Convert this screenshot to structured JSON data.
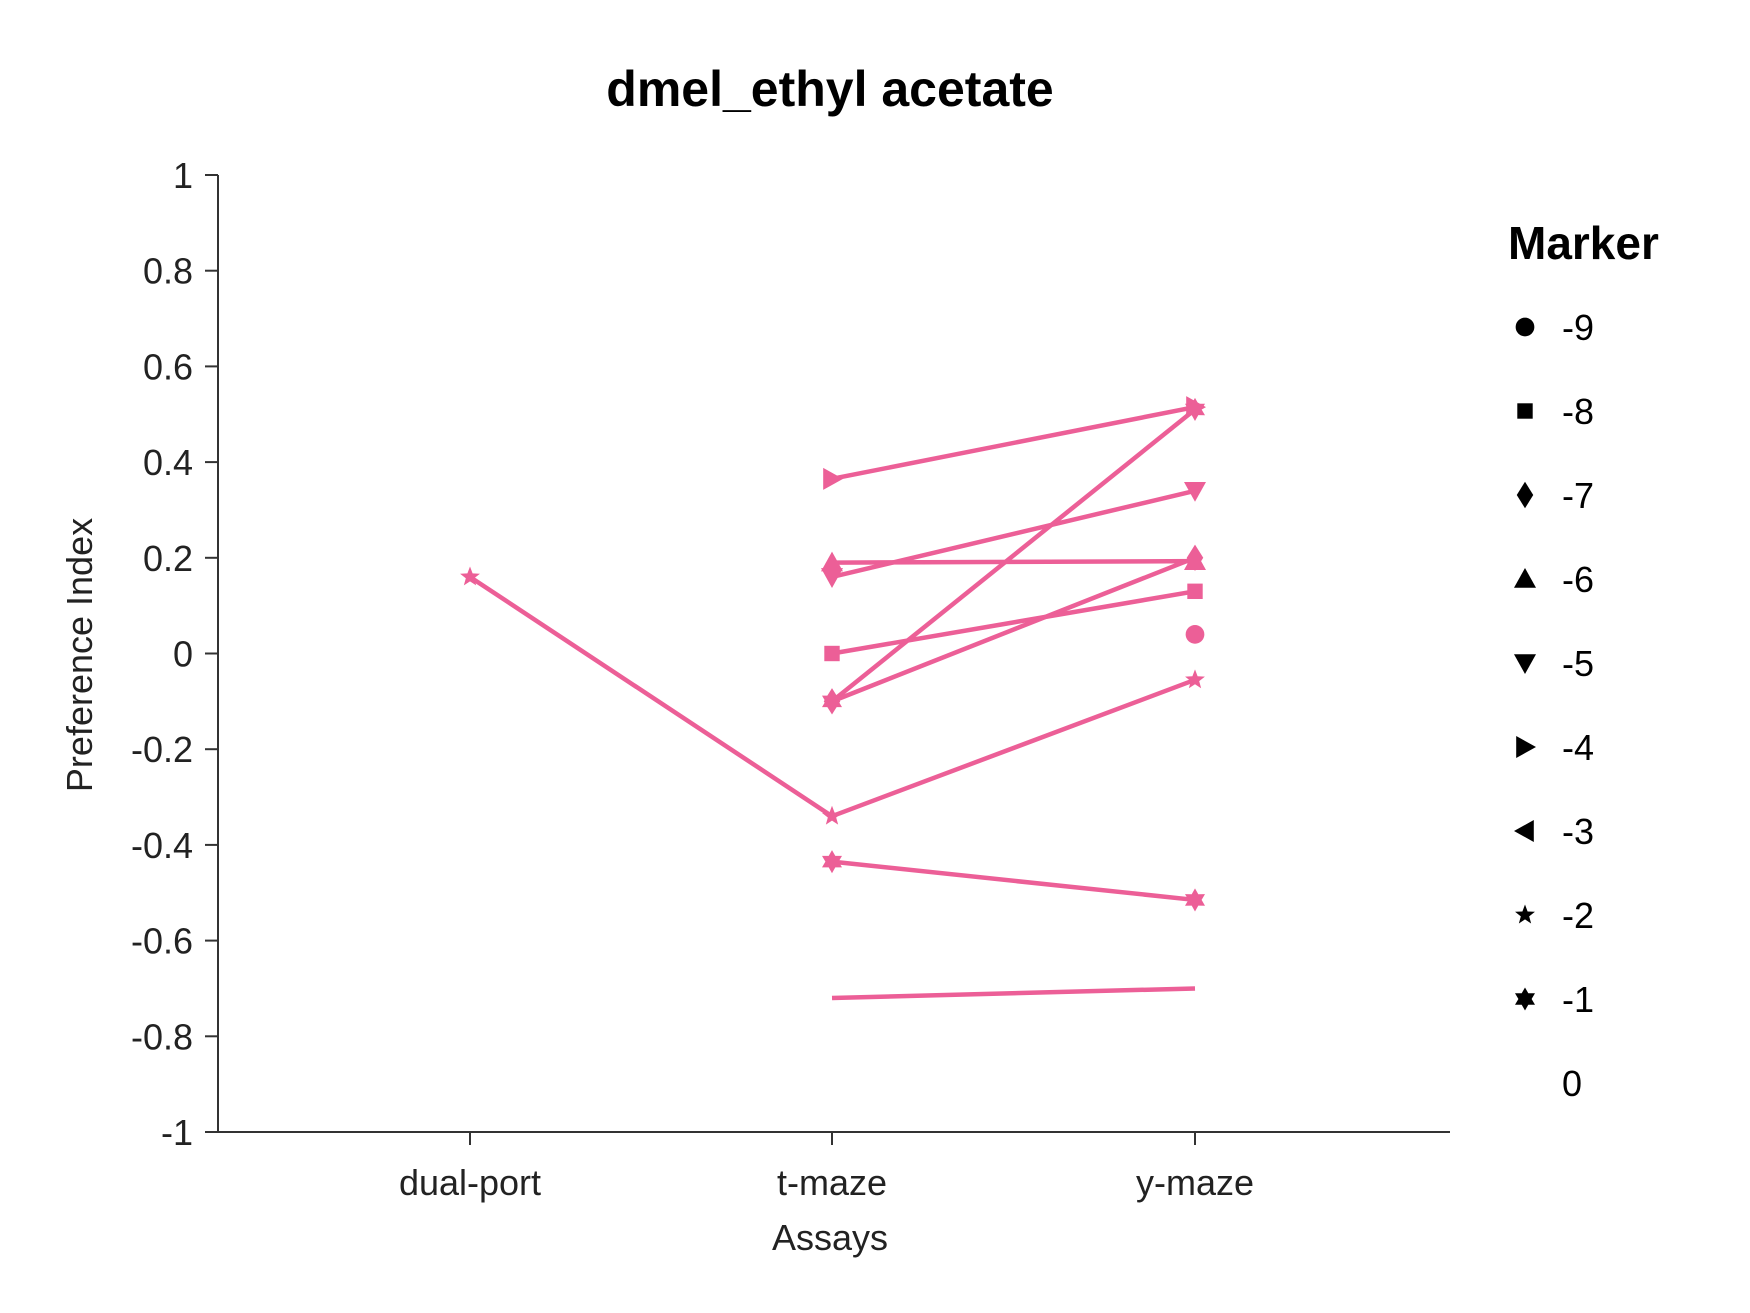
{
  "chart_data": {
    "type": "line",
    "title": "dmel_ethyl acetate",
    "xlabel": "Assays",
    "ylabel": "Preference Index",
    "categories": [
      "dual-port",
      "t-maze",
      "y-maze"
    ],
    "ylim": [
      -1,
      1
    ],
    "yticks": [
      1,
      0.8,
      0.6,
      0.4,
      0.2,
      0,
      -0.2,
      -0.4,
      -0.6,
      -0.8,
      -1
    ],
    "grid": false,
    "line_color": "#ec5f97",
    "legend": {
      "title": "Marker",
      "placement": "right",
      "entries": [
        {
          "label": "-9",
          "marker": "circle"
        },
        {
          "label": "-8",
          "marker": "square"
        },
        {
          "label": "-7",
          "marker": "diamond"
        },
        {
          "label": "-6",
          "marker": "triangle-up"
        },
        {
          "label": "-5",
          "marker": "triangle-down"
        },
        {
          "label": "-4",
          "marker": "triangle-right"
        },
        {
          "label": "-3",
          "marker": "triangle-left"
        },
        {
          "label": "-2",
          "marker": "pentagram"
        },
        {
          "label": "-1",
          "marker": "hexagram"
        },
        {
          "label": "0",
          "marker": "none"
        }
      ]
    },
    "series": [
      {
        "marker": "pentagram",
        "values": [
          0.16,
          -0.34,
          -0.055
        ]
      },
      {
        "marker": "triangle-right",
        "values": [
          null,
          0.365,
          0.515
        ]
      },
      {
        "marker": "hexagram",
        "values": [
          null,
          -0.1,
          0.51
        ]
      },
      {
        "marker": "triangle-down",
        "values": [
          null,
          0.16,
          0.34
        ]
      },
      {
        "marker": "triangle-up",
        "values": [
          null,
          0.19,
          0.193
        ]
      },
      {
        "marker": "diamond",
        "values": [
          null,
          -0.1,
          0.2
        ]
      },
      {
        "marker": "square",
        "values": [
          null,
          0.0,
          0.13
        ]
      },
      {
        "marker": "circle",
        "values": [
          null,
          null,
          0.04
        ]
      },
      {
        "marker": "hexagram",
        "values": [
          null,
          -0.435,
          -0.515
        ]
      },
      {
        "marker": "none",
        "values": [
          null,
          -0.72,
          -0.7
        ]
      }
    ]
  }
}
